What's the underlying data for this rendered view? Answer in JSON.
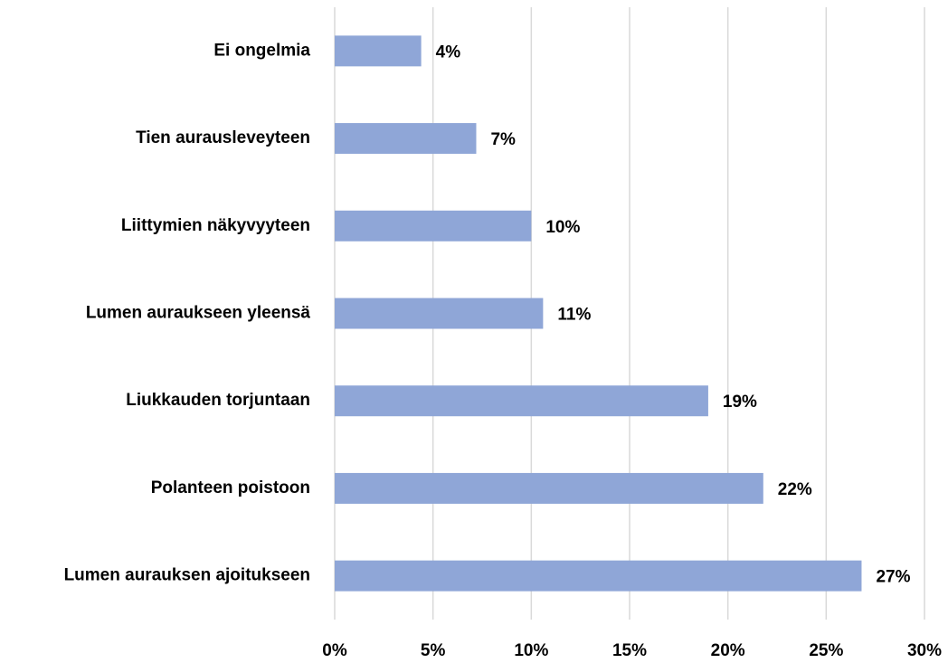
{
  "chart_data": {
    "type": "bar",
    "orientation": "horizontal",
    "categories": [
      "Ei ongelmia",
      "Tien aurausleveyteen",
      "Liittymien näkyvyyteen",
      "Lumen auraukseen yleensä",
      "Liukkauden torjuntaan",
      "Polanteen poistoon",
      "Lumen aurauksen ajoitukseen"
    ],
    "values": [
      4.4,
      7.2,
      10.0,
      10.6,
      19.0,
      21.8,
      26.8
    ],
    "value_labels": [
      "4%",
      "7%",
      "10%",
      "11%",
      "19%",
      "22%",
      "27%"
    ],
    "color": "#8fa6d7",
    "xlim": [
      0,
      30
    ],
    "xticks": [
      {
        "value": 0,
        "label": "0%"
      },
      {
        "value": 5,
        "label": "5%"
      },
      {
        "value": 10,
        "label": "10%"
      },
      {
        "value": 15,
        "label": "15%"
      },
      {
        "value": 20,
        "label": "20%"
      },
      {
        "value": 25,
        "label": "25%"
      },
      {
        "value": 30,
        "label": "30%"
      }
    ],
    "grid": true
  }
}
